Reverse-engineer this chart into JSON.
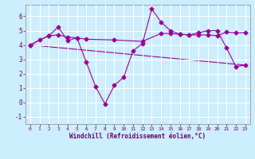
{
  "bg_color": "#cceeff",
  "grid_color": "#ffffff",
  "line_color": "#990099",
  "xlabel": "Windchill (Refroidissement éolien,°C)",
  "xlim": [
    -0.5,
    23.5
  ],
  "ylim": [
    -1.5,
    6.8
  ],
  "yticks": [
    -1,
    0,
    1,
    2,
    3,
    4,
    5,
    6
  ],
  "xticks": [
    0,
    1,
    2,
    3,
    4,
    5,
    6,
    7,
    8,
    9,
    10,
    11,
    12,
    13,
    14,
    15,
    16,
    17,
    18,
    19,
    20,
    21,
    22,
    23
  ],
  "series": [
    {
      "x": [
        0,
        1,
        2,
        3,
        4,
        5,
        6,
        7,
        8,
        9,
        10,
        11,
        12,
        13,
        14,
        15,
        16,
        17,
        18,
        19,
        20,
        21,
        22,
        23
      ],
      "y": [
        4.0,
        4.35,
        4.65,
        5.25,
        4.3,
        4.5,
        2.8,
        1.1,
        -0.1,
        1.2,
        1.75,
        3.6,
        4.1,
        6.5,
        5.6,
        5.0,
        4.75,
        4.7,
        4.85,
        5.0,
        5.0,
        3.8,
        2.5,
        2.6
      ],
      "marker": "D",
      "markersize": 2.5
    },
    {
      "x": [
        0,
        2,
        3,
        4,
        5,
        6,
        9,
        12,
        14,
        15,
        16,
        17,
        18,
        19,
        20,
        21,
        22,
        23
      ],
      "y": [
        4.0,
        4.65,
        4.7,
        4.55,
        4.5,
        4.4,
        4.35,
        4.25,
        4.8,
        4.8,
        4.75,
        4.7,
        4.7,
        4.7,
        4.65,
        4.9,
        4.85,
        4.85
      ],
      "marker": "D",
      "markersize": 2.5
    },
    {
      "x": [
        0,
        23
      ],
      "y": [
        4.0,
        2.6
      ],
      "marker": null,
      "markersize": 0
    }
  ]
}
